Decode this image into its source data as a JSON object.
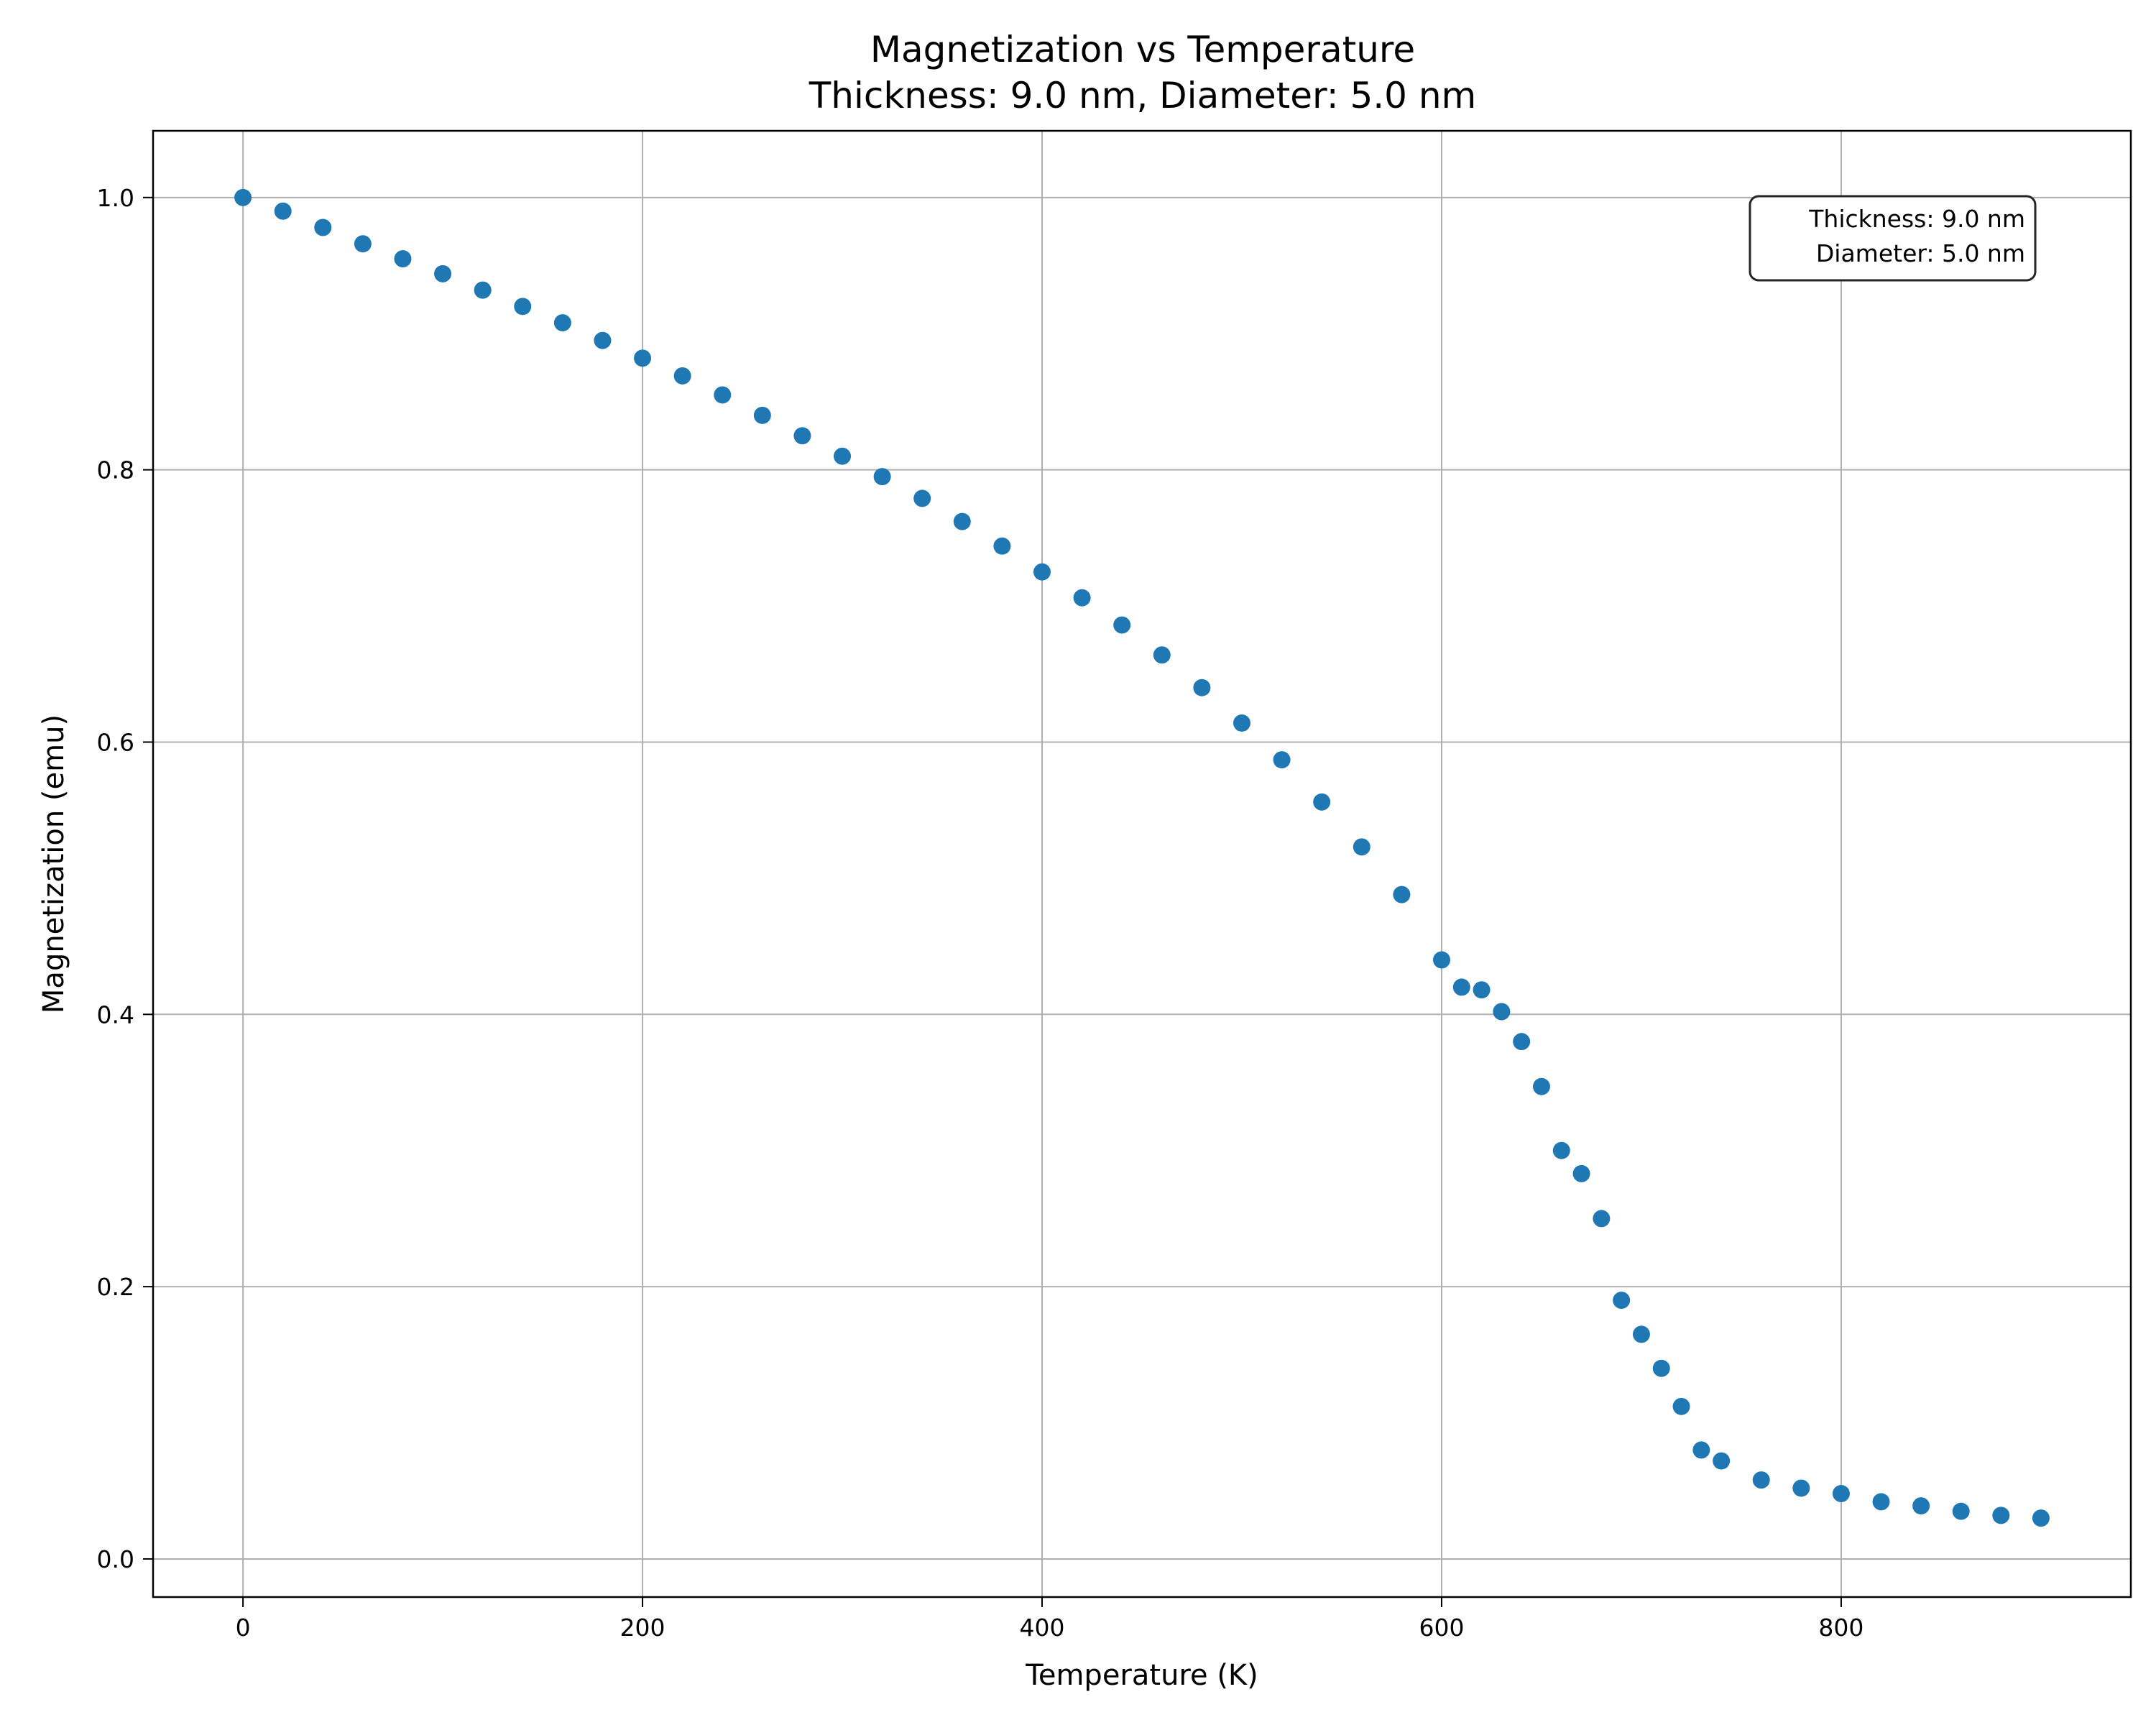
{
  "chart_data": {
    "type": "scatter",
    "title": "Magnetization vs Temperature",
    "subtitle": "Thickness: 9.0 nm, Diameter: 5.0 nm",
    "xlabel": "Temperature (K)",
    "ylabel": "Magnetization (emu)",
    "xlim": [
      -45,
      945
    ],
    "ylim": [
      -0.028,
      1.049
    ],
    "x_ticks": [
      0,
      200,
      400,
      600,
      800
    ],
    "y_ticks": [
      0.0,
      0.2,
      0.4,
      0.6,
      0.8,
      1.0
    ],
    "x_tick_labels": [
      "0",
      "200",
      "400",
      "600",
      "800"
    ],
    "y_tick_labels": [
      "0.0",
      "0.2",
      "0.4",
      "0.6",
      "0.8",
      "1.0"
    ],
    "grid": true,
    "annotation": {
      "lines": [
        "Thickness: 9.0 nm",
        "Diameter: 5.0 nm"
      ],
      "placement": "top-right"
    },
    "series": [
      {
        "color": "#1f77b4",
        "points": [
          [
            0,
            1.0
          ],
          [
            20,
            0.99
          ],
          [
            40,
            0.978
          ],
          [
            60,
            0.966
          ],
          [
            80,
            0.955
          ],
          [
            100,
            0.944
          ],
          [
            120,
            0.932
          ],
          [
            140,
            0.92
          ],
          [
            160,
            0.908
          ],
          [
            180,
            0.895
          ],
          [
            200,
            0.882
          ],
          [
            220,
            0.869
          ],
          [
            240,
            0.855
          ],
          [
            260,
            0.84
          ],
          [
            280,
            0.825
          ],
          [
            300,
            0.81
          ],
          [
            320,
            0.795
          ],
          [
            340,
            0.779
          ],
          [
            360,
            0.762
          ],
          [
            380,
            0.744
          ],
          [
            400,
            0.725
          ],
          [
            420,
            0.706
          ],
          [
            440,
            0.686
          ],
          [
            460,
            0.664
          ],
          [
            480,
            0.64
          ],
          [
            500,
            0.614
          ],
          [
            520,
            0.587
          ],
          [
            540,
            0.556
          ],
          [
            560,
            0.523
          ],
          [
            580,
            0.488
          ],
          [
            600,
            0.44
          ],
          [
            610,
            0.42
          ],
          [
            620,
            0.418
          ],
          [
            630,
            0.402
          ],
          [
            640,
            0.38
          ],
          [
            650,
            0.347
          ],
          [
            660,
            0.3
          ],
          [
            670,
            0.283
          ],
          [
            680,
            0.25
          ],
          [
            690,
            0.19
          ],
          [
            700,
            0.165
          ],
          [
            710,
            0.14
          ],
          [
            720,
            0.112
          ],
          [
            730,
            0.08
          ],
          [
            740,
            0.072
          ],
          [
            760,
            0.058
          ],
          [
            780,
            0.052
          ],
          [
            800,
            0.048
          ],
          [
            820,
            0.042
          ],
          [
            840,
            0.039
          ],
          [
            860,
            0.035
          ],
          [
            880,
            0.032
          ],
          [
            900,
            0.03
          ]
        ]
      }
    ]
  }
}
